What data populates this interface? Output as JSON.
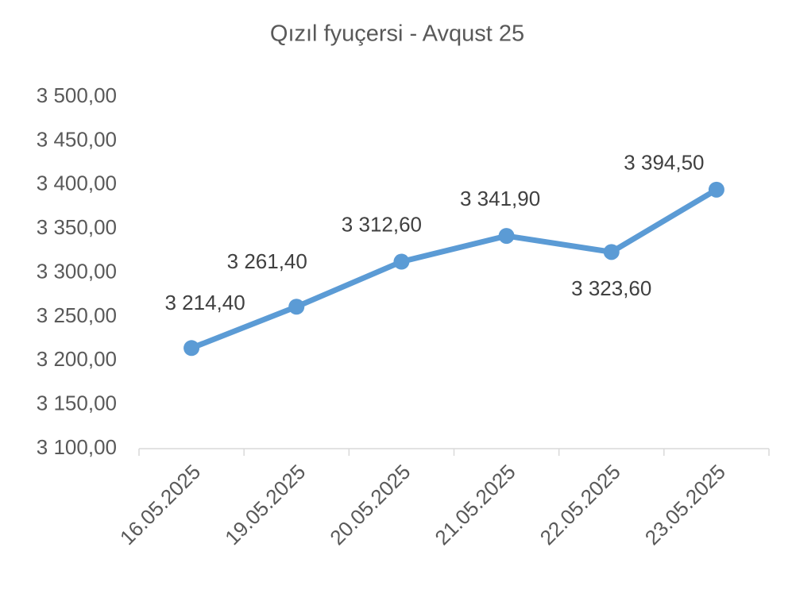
{
  "chart_data": {
    "type": "line",
    "title": "Qızıl fyuçersi - Avqust 25",
    "categories": [
      "16.05.2025",
      "19.05.2025",
      "20.05.2025",
      "21.05.2025",
      "22.05.2025",
      "23.05.2025"
    ],
    "series": [
      {
        "name": "Qızıl fyuçersi - Avqust 25",
        "color": "#5b9bd5",
        "values": [
          3214.4,
          3261.4,
          3312.6,
          3341.9,
          3323.6,
          3394.5
        ],
        "value_labels": [
          "3 214,40",
          "3 261,40",
          "3 312,60",
          "3 341,90",
          "3 323,60",
          "3 394,50"
        ]
      }
    ],
    "ylim": [
      3100,
      3500
    ],
    "yticks": [
      {
        "value": 3100,
        "label": "3 100,00"
      },
      {
        "value": 3150,
        "label": "3 150,00"
      },
      {
        "value": 3200,
        "label": "3 200,00"
      },
      {
        "value": 3250,
        "label": "3 250,00"
      },
      {
        "value": 3300,
        "label": "3 300,00"
      },
      {
        "value": 3350,
        "label": "3 350,00"
      },
      {
        "value": 3400,
        "label": "3 400,00"
      },
      {
        "value": 3450,
        "label": "3 450,00"
      },
      {
        "value": 3500,
        "label": "3 500,00"
      }
    ],
    "grid": false
  }
}
